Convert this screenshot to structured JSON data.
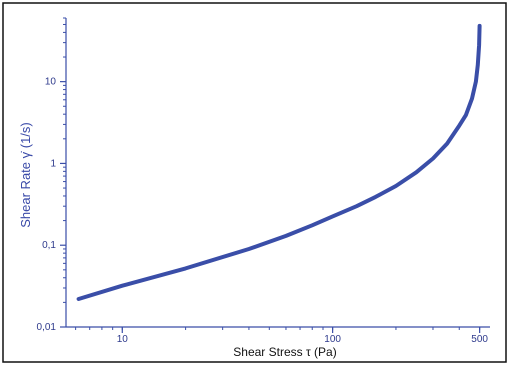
{
  "chart_data": {
    "type": "line",
    "title": "",
    "xlabel": "Shear  Stress τ (Pa)",
    "ylabel": "Shear Rate γ̇ (1/s)",
    "x_scale": "log",
    "y_scale": "log",
    "xlim": [
      5.4,
      560
    ],
    "ylim": [
      0.01,
      60
    ],
    "x_ticks": [
      {
        "value": 10,
        "label": "10"
      },
      {
        "value": 100,
        "label": "100"
      },
      {
        "value": 500,
        "label": "500"
      }
    ],
    "y_ticks": [
      {
        "value": 0.01,
        "label": "0,01"
      },
      {
        "value": 0.1,
        "label": "0,1"
      },
      {
        "value": 1,
        "label": "1"
      },
      {
        "value": 10,
        "label": "10"
      }
    ],
    "grid": false,
    "legend": "none",
    "colors": {
      "line": "#3a4ea8",
      "axis": "#3a4ea8",
      "frame": "#111111"
    },
    "series": [
      {
        "x": [
          6.2,
          10,
          20,
          40,
          60,
          80,
          100,
          130,
          160,
          200,
          250,
          300,
          350,
          400,
          430,
          460,
          480,
          490,
          497,
          500
        ],
        "y": [
          0.022,
          0.032,
          0.052,
          0.09,
          0.13,
          0.175,
          0.225,
          0.3,
          0.39,
          0.53,
          0.78,
          1.15,
          1.75,
          2.9,
          3.9,
          6.2,
          10,
          16,
          28,
          48
        ]
      }
    ]
  }
}
